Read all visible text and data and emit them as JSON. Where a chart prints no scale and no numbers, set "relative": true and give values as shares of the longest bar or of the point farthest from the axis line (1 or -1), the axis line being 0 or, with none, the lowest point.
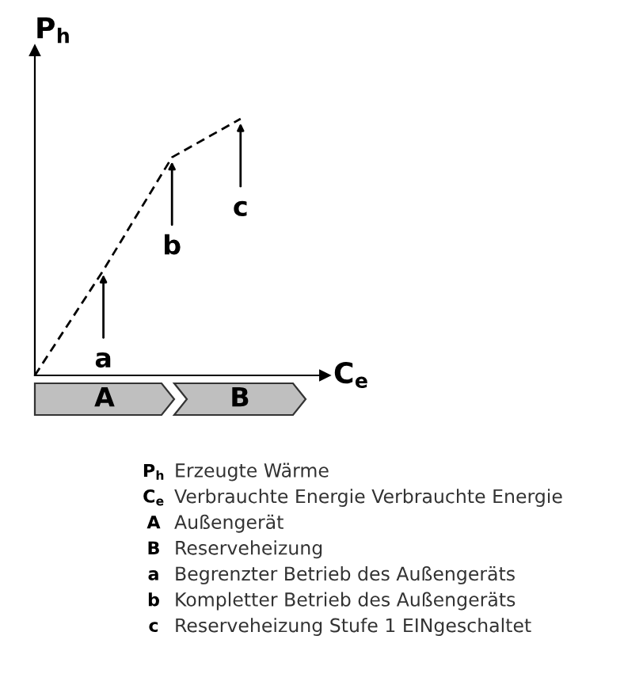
{
  "chart_data": {
    "type": "line",
    "relative": true,
    "categories": [
      null,
      null,
      null,
      null
    ],
    "series": [
      {
        "color": "#000000",
        "values": [
          0,
          0.41,
          0.85,
          1
        ]
      }
    ],
    "line_style": "dashed",
    "marker": "none",
    "grid": false,
    "xlabel": "C$_{e}$",
    "ylabel": "P$_{h}$",
    "annotations": [
      {
        "text": "a",
        "y": 0.41
      },
      {
        "text": "b",
        "y": 0.85
      },
      {
        "text": "c",
        "y": 1
      },
      "A",
      "B",
      "P$_{h}$",
      "Erzeugte Wärme",
      "C$_{e}$",
      "Verbrauchte Energie Verbrauchte Energie",
      "A",
      "Außengerät",
      "B",
      "Reserveheizung",
      "a",
      "Begrenzter Betrieb des Außengeräts",
      "b",
      "Kompletter Betrieb des Außengeräts",
      "c",
      "Reserveheizung Stufe 1 EINgeschaltet"
    ]
  }
}
